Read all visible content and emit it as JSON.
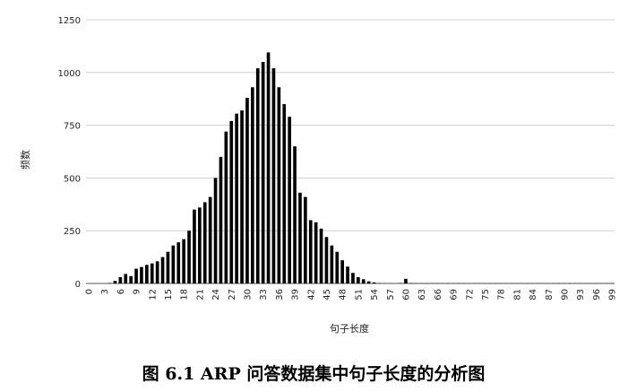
{
  "chart_data": {
    "type": "bar",
    "title": "",
    "xlabel": "句子长度",
    "ylabel": "频数",
    "ylim": [
      0,
      1250
    ],
    "yticks": [
      0,
      250,
      500,
      750,
      1000,
      1250
    ],
    "grid": true,
    "legend": "none",
    "bar_color": "#000000",
    "x": [
      0,
      1,
      2,
      3,
      4,
      5,
      6,
      7,
      8,
      9,
      10,
      11,
      12,
      13,
      14,
      15,
      16,
      17,
      18,
      19,
      20,
      21,
      22,
      23,
      24,
      25,
      26,
      27,
      28,
      29,
      30,
      31,
      32,
      33,
      34,
      35,
      36,
      37,
      38,
      39,
      40,
      41,
      42,
      43,
      44,
      45,
      46,
      47,
      48,
      49,
      50,
      51,
      52,
      53,
      54,
      55,
      56,
      57,
      58,
      59,
      60,
      61,
      62,
      63,
      64,
      65,
      66,
      67,
      68,
      69,
      70,
      71,
      72,
      73,
      74,
      75,
      76,
      77,
      78,
      79,
      80,
      81,
      82,
      83,
      84,
      85,
      86,
      87,
      88,
      89,
      90,
      91,
      92,
      93,
      94,
      95,
      96,
      97,
      98,
      99
    ],
    "values": [
      0,
      0,
      0,
      0,
      2,
      12,
      30,
      45,
      35,
      70,
      78,
      88,
      95,
      105,
      125,
      150,
      180,
      195,
      210,
      250,
      350,
      360,
      385,
      410,
      500,
      600,
      720,
      770,
      805,
      820,
      880,
      930,
      1020,
      1050,
      1095,
      1020,
      930,
      850,
      790,
      650,
      430,
      410,
      300,
      290,
      260,
      220,
      180,
      150,
      110,
      80,
      50,
      30,
      20,
      10,
      5,
      2,
      1,
      1,
      0,
      2,
      22,
      2,
      1,
      1,
      1,
      1,
      1,
      1,
      1,
      1,
      1,
      1,
      1,
      1,
      1,
      1,
      1,
      1,
      1,
      1,
      1,
      1,
      1,
      1,
      1,
      1,
      1,
      1,
      1,
      1,
      1,
      1,
      1,
      1,
      1,
      1,
      1,
      1,
      1,
      1
    ],
    "xtick_labels": [
      "0",
      "3",
      "6",
      "9",
      "12",
      "15",
      "18",
      "21",
      "24",
      "27",
      "30",
      "33",
      "36",
      "39",
      "42",
      "45",
      "48",
      "51",
      "54",
      "57",
      "60",
      "63",
      "66",
      "69",
      "72",
      "75",
      "78",
      "81",
      "84",
      "87",
      "90",
      "93",
      "96",
      "99"
    ]
  },
  "caption": "图 6.1 ARP 问答数据集中句子长度的分析图"
}
